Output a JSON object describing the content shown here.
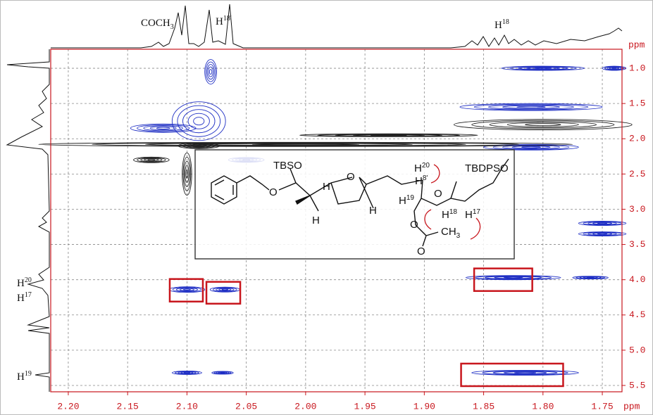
{
  "chart_data": {
    "type": "nmr2d",
    "xlabel": "ppm",
    "ylabel": "ppm",
    "xlim": [
      2.2148,
      1.7334
    ],
    "ylim": [
      0.73,
      5.59
    ],
    "xticks": [
      {
        "value": 2.2,
        "label": "2.20"
      },
      2.15,
      {
        "value": 2.1,
        "label": "2.10"
      },
      2.05,
      {
        "value": 2.0,
        "label": "2.00"
      },
      1.95,
      {
        "value": 1.9,
        "label": "1.90"
      },
      1.85,
      {
        "value": 1.8,
        "label": "1.80"
      },
      1.75
    ],
    "yticks": [
      {
        "value": 1,
        "label": "1.0"
      },
      1.5,
      {
        "value": 2,
        "label": "2.0"
      },
      2.5,
      {
        "value": 3,
        "label": "3.0"
      },
      3.5,
      {
        "value": 4,
        "label": "4.0"
      },
      4.5,
      {
        "value": 5,
        "label": "5.0"
      },
      5.5
    ],
    "grid": true,
    "peaks": [
      {
        "x": 2.1,
        "y": 4.14,
        "wx": 0.03,
        "wy": 0.08,
        "color": "#1f2fc4"
      },
      {
        "x": 2.068,
        "y": 4.14,
        "wx": 0.025,
        "wy": 0.07,
        "color": "#1f2fc4"
      },
      {
        "x": 1.825,
        "y": 3.97,
        "wx": 0.08,
        "wy": 0.06,
        "color": "#1f2fc4"
      },
      {
        "x": 1.815,
        "y": 5.32,
        "wx": 0.09,
        "wy": 0.07,
        "color": "#1f2fc4"
      },
      {
        "x": 2.1,
        "y": 5.32,
        "wx": 0.025,
        "wy": 0.05,
        "color": "#1f2fc4"
      },
      {
        "x": 2.07,
        "y": 5.32,
        "wx": 0.018,
        "wy": 0.04,
        "color": "#1f2fc4"
      },
      {
        "x": 2.08,
        "y": 1.05,
        "wx": 0.01,
        "wy": 0.35,
        "color": "#1f2fc4"
      },
      {
        "x": 2.09,
        "y": 1.75,
        "wx": 0.045,
        "wy": 0.55,
        "color": "#1f2fc4"
      },
      {
        "x": 2.12,
        "y": 1.85,
        "wx": 0.055,
        "wy": 0.12,
        "color": "#1f2fc4"
      },
      {
        "x": 1.8,
        "y": 1.0,
        "wx": 0.07,
        "wy": 0.06,
        "color": "#1f2fc4"
      },
      {
        "x": 1.81,
        "y": 1.55,
        "wx": 0.12,
        "wy": 0.1,
        "color": "#1f2fc4"
      },
      {
        "x": 1.81,
        "y": 2.12,
        "wx": 0.08,
        "wy": 0.08,
        "color": "#1f2fc4"
      },
      {
        "x": 2.05,
        "y": 2.3,
        "wx": 0.03,
        "wy": 0.07,
        "color": "#1f2fc4"
      },
      {
        "x": 1.75,
        "y": 3.2,
        "wx": 0.04,
        "wy": 0.06,
        "color": "#1f2fc4"
      },
      {
        "x": 1.75,
        "y": 3.35,
        "wx": 0.04,
        "wy": 0.06,
        "color": "#1f2fc4"
      },
      {
        "x": 1.76,
        "y": 3.97,
        "wx": 0.03,
        "wy": 0.04,
        "color": "#1f2fc4"
      },
      {
        "x": 1.74,
        "y": 1.0,
        "wx": 0.02,
        "wy": 0.06,
        "color": "#1f2fc4"
      },
      {
        "x": 2.0,
        "y": 2.08,
        "wx": 0.45,
        "wy": 0.06,
        "color": "#222222"
      },
      {
        "x": 2.09,
        "y": 2.1,
        "wx": 0.035,
        "wy": 0.08,
        "color": "#222222"
      },
      {
        "x": 2.1,
        "y": 2.5,
        "wx": 0.008,
        "wy": 0.6,
        "color": "#222222"
      },
      {
        "x": 1.8,
        "y": 1.8,
        "wx": 0.15,
        "wy": 0.15,
        "color": "#222222"
      },
      {
        "x": 2.13,
        "y": 2.3,
        "wx": 0.03,
        "wy": 0.08,
        "color": "#222222"
      },
      {
        "x": 1.93,
        "y": 1.95,
        "wx": 0.15,
        "wy": 0.04,
        "color": "#222222"
      }
    ],
    "highlight_color": "#c8161d",
    "boxes": [
      {
        "x": [
          2.1145,
          2.0866
        ],
        "y": [
          3.99,
          4.31
        ]
      },
      {
        "x": [
          2.0836,
          2.0551
        ],
        "y": [
          4.03,
          4.34
        ]
      },
      {
        "x": [
          1.858,
          1.809
        ],
        "y": [
          3.84,
          4.16
        ]
      },
      {
        "x": [
          1.869,
          1.783
        ],
        "y": [
          5.19,
          5.51
        ]
      }
    ],
    "annotations": [
      {
        "text": "COCH",
        "sub": "3"
      },
      {
        "text": "H",
        "sup": "18'"
      },
      {
        "text": "H",
        "sup": "18"
      },
      {
        "text": "H",
        "sup": "20"
      },
      {
        "text": "H",
        "sup": "17"
      },
      {
        "text": "H",
        "sup": "19"
      }
    ],
    "structure_labels": [
      {
        "text": "TBSO"
      },
      {
        "text": "O"
      },
      {
        "text": "O"
      },
      {
        "text": "H"
      },
      {
        "text": "H"
      },
      {
        "text": "H"
      },
      {
        "text": "H",
        "sup": "20"
      },
      {
        "text": "H",
        "sup": "8'"
      },
      {
        "text": "H",
        "sup": "19"
      },
      {
        "text": "O"
      },
      {
        "text": "H",
        "sup": "18"
      },
      {
        "text": "H",
        "sup": "17"
      },
      {
        "text": "TBDPSO"
      },
      {
        "text": "CH",
        "sub": "3"
      },
      {
        "text": "O"
      },
      {
        "text": "O"
      }
    ]
  }
}
